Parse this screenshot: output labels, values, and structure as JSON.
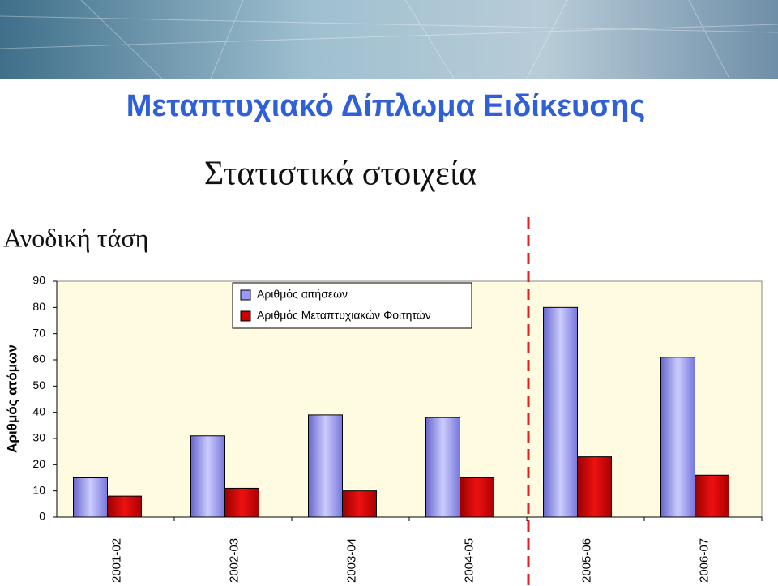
{
  "title": "Μεταπτυχιακό Δίπλωμα Ειδίκευσης",
  "subtitle": "Στατιστικά στοιχεία",
  "note": "Ανοδική τάση",
  "chart_data": {
    "type": "bar",
    "y_label": "Αριθμός ατόμων",
    "categories": [
      "2001-02",
      "2002-03",
      "2003-04",
      "2004-05",
      "2005-06",
      "2006-07"
    ],
    "series": [
      {
        "name": "Αριθμός αιτήσεων",
        "color": "#9999ff",
        "values": [
          15,
          31,
          39,
          38,
          80,
          61
        ]
      },
      {
        "name": "Αριθμός Μεταπτυχιακών Φοιτητών",
        "color": "#cc0000",
        "values": [
          8,
          11,
          10,
          15,
          23,
          16
        ]
      }
    ],
    "ylim": [
      0,
      90
    ],
    "yticks": [
      0,
      10,
      20,
      30,
      40,
      50,
      60,
      70,
      80,
      90
    ],
    "grid": false,
    "legend": "top"
  }
}
